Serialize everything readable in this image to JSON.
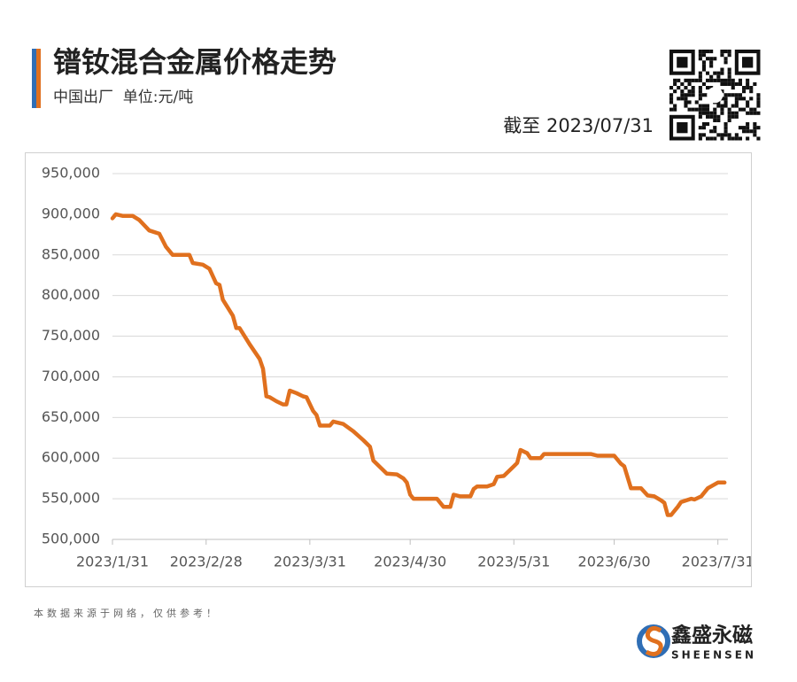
{
  "header": {
    "as_of": "截至 2023/07/31"
  },
  "chart_data": {
    "type": "line",
    "title": "镨钕混合金属价格走势",
    "subtitle": "中国出厂  单位:元/吨",
    "color": "#e0701e",
    "grid": true,
    "x": [
      "2023-01-31",
      "2023-02-01",
      "2023-02-03",
      "2023-02-06",
      "2023-02-08",
      "2023-02-11",
      "2023-02-14",
      "2023-02-16",
      "2023-02-18",
      "2023-02-23",
      "2023-02-24",
      "2023-02-27",
      "2023-03-01",
      "2023-03-03",
      "2023-03-04",
      "2023-03-05",
      "2023-03-08",
      "2023-03-09",
      "2023-03-10",
      "2023-03-13",
      "2023-03-16",
      "2023-03-17",
      "2023-03-18",
      "2023-03-19",
      "2023-03-21",
      "2023-03-23",
      "2023-03-24",
      "2023-03-25",
      "2023-03-27",
      "2023-03-29",
      "2023-03-30",
      "2023-04-01",
      "2023-04-02",
      "2023-04-03",
      "2023-04-06",
      "2023-04-07",
      "2023-04-10",
      "2023-04-13",
      "2023-04-16",
      "2023-04-18",
      "2023-04-19",
      "2023-04-23",
      "2023-04-26",
      "2023-04-28",
      "2023-04-29",
      "2023-04-30",
      "2023-05-01",
      "2023-05-08",
      "2023-05-10",
      "2023-05-12",
      "2023-05-13",
      "2023-05-15",
      "2023-05-18",
      "2023-05-19",
      "2023-05-20",
      "2023-05-23",
      "2023-05-25",
      "2023-05-26",
      "2023-05-28",
      "2023-05-31",
      "2023-06-01",
      "2023-06-02",
      "2023-06-04",
      "2023-06-05",
      "2023-06-08",
      "2023-06-09",
      "2023-06-23",
      "2023-06-25",
      "2023-06-30",
      "2023-07-02",
      "2023-07-03",
      "2023-07-05",
      "2023-07-08",
      "2023-07-10",
      "2023-07-12",
      "2023-07-14",
      "2023-07-15",
      "2023-07-16",
      "2023-07-17",
      "2023-07-19",
      "2023-07-20",
      "2023-07-23",
      "2023-07-24",
      "2023-07-26",
      "2023-07-28",
      "2023-07-31",
      "2023-08-02"
    ],
    "values": [
      895000,
      900000,
      898000,
      898000,
      893000,
      880000,
      876000,
      860000,
      850000,
      850000,
      840000,
      838000,
      833000,
      815000,
      813000,
      795000,
      775000,
      760000,
      760000,
      740000,
      722000,
      710000,
      676000,
      675000,
      670000,
      666000,
      666000,
      683000,
      680000,
      676000,
      675000,
      658000,
      653000,
      640000,
      640000,
      645000,
      642000,
      633000,
      622000,
      614000,
      597000,
      581000,
      580000,
      575000,
      570000,
      555000,
      550000,
      550000,
      540000,
      540000,
      555000,
      553000,
      553000,
      562000,
      565000,
      565000,
      568000,
      577000,
      578000,
      590000,
      594000,
      610000,
      606000,
      600000,
      600000,
      605000,
      605000,
      603000,
      603000,
      593000,
      590000,
      563000,
      563000,
      554000,
      553000,
      548000,
      545000,
      530000,
      530000,
      540000,
      546000,
      550000,
      549000,
      553000,
      563000,
      570000,
      570000
    ],
    "xlim": [
      "2023-01-31",
      "2023-08-03"
    ],
    "xticks": [
      {
        "value": "2023-01-31",
        "label": "2023/1/31"
      },
      {
        "value": "2023-02-28",
        "label": "2023/2/28"
      },
      {
        "value": "2023-03-31",
        "label": "2023/3/31"
      },
      {
        "value": "2023-04-30",
        "label": "2023/4/30"
      },
      {
        "value": "2023-05-31",
        "label": "2023/5/31"
      },
      {
        "value": "2023-06-30",
        "label": "2023/6/30"
      },
      {
        "value": "2023-07-31",
        "label": "2023/7/31"
      }
    ],
    "ylim": [
      500000,
      950000
    ],
    "yticks": [
      {
        "value": 500000,
        "label": "500,000"
      },
      {
        "value": 550000,
        "label": "550,000"
      },
      {
        "value": 600000,
        "label": "600,000"
      },
      {
        "value": 650000,
        "label": "650,000"
      },
      {
        "value": 700000,
        "label": "700,000"
      },
      {
        "value": 750000,
        "label": "750,000"
      },
      {
        "value": 800000,
        "label": "800,000"
      },
      {
        "value": 850000,
        "label": "850,000"
      },
      {
        "value": 900000,
        "label": "900,000"
      },
      {
        "value": 950000,
        "label": "950,000"
      }
    ]
  },
  "footer": {
    "note": "本数据来源于网络，仅供参考！",
    "brand": "鑫盛永磁",
    "brand_latin": "SHEENSEN"
  }
}
